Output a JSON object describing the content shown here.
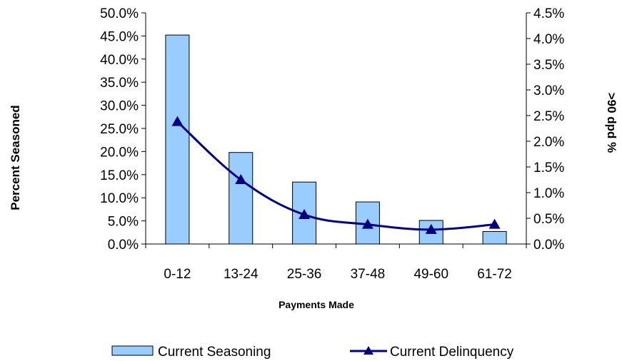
{
  "chart_data": {
    "type": "bar",
    "categories": [
      "0-12",
      "13-24",
      "25-36",
      "37-48",
      "49-60",
      "61-72"
    ],
    "xlabel": "Payments Made",
    "ylabel": "Percent Seasoned",
    "y2label": ">90 dpd %",
    "ylim": [
      0,
      50
    ],
    "y2lim": [
      0,
      4.5
    ],
    "y_ticks": [
      "0.0%",
      "5.0%",
      "10.0%",
      "15.0%",
      "20.0%",
      "25.0%",
      "30.0%",
      "35.0%",
      "40.0%",
      "45.0%",
      "50.0%"
    ],
    "y2_ticks": [
      "0.0%",
      "0.5%",
      "1.0%",
      "1.5%",
      "2.0%",
      "2.5%",
      "3.0%",
      "3.5%",
      "4.0%",
      "4.5%"
    ],
    "grid": false,
    "legend_position": "bottom",
    "series": [
      {
        "name": "Current Seasoning",
        "type": "bar",
        "axis": "left",
        "color": "#99ccff",
        "values": [
          45.2,
          19.8,
          13.4,
          9.1,
          5.1,
          2.7
        ]
      },
      {
        "name": "Current Delinquency",
        "type": "line",
        "axis": "right",
        "color": "#000080",
        "marker": "triangle",
        "values": [
          2.38,
          1.25,
          0.57,
          0.38,
          0.28,
          0.38
        ]
      }
    ]
  }
}
